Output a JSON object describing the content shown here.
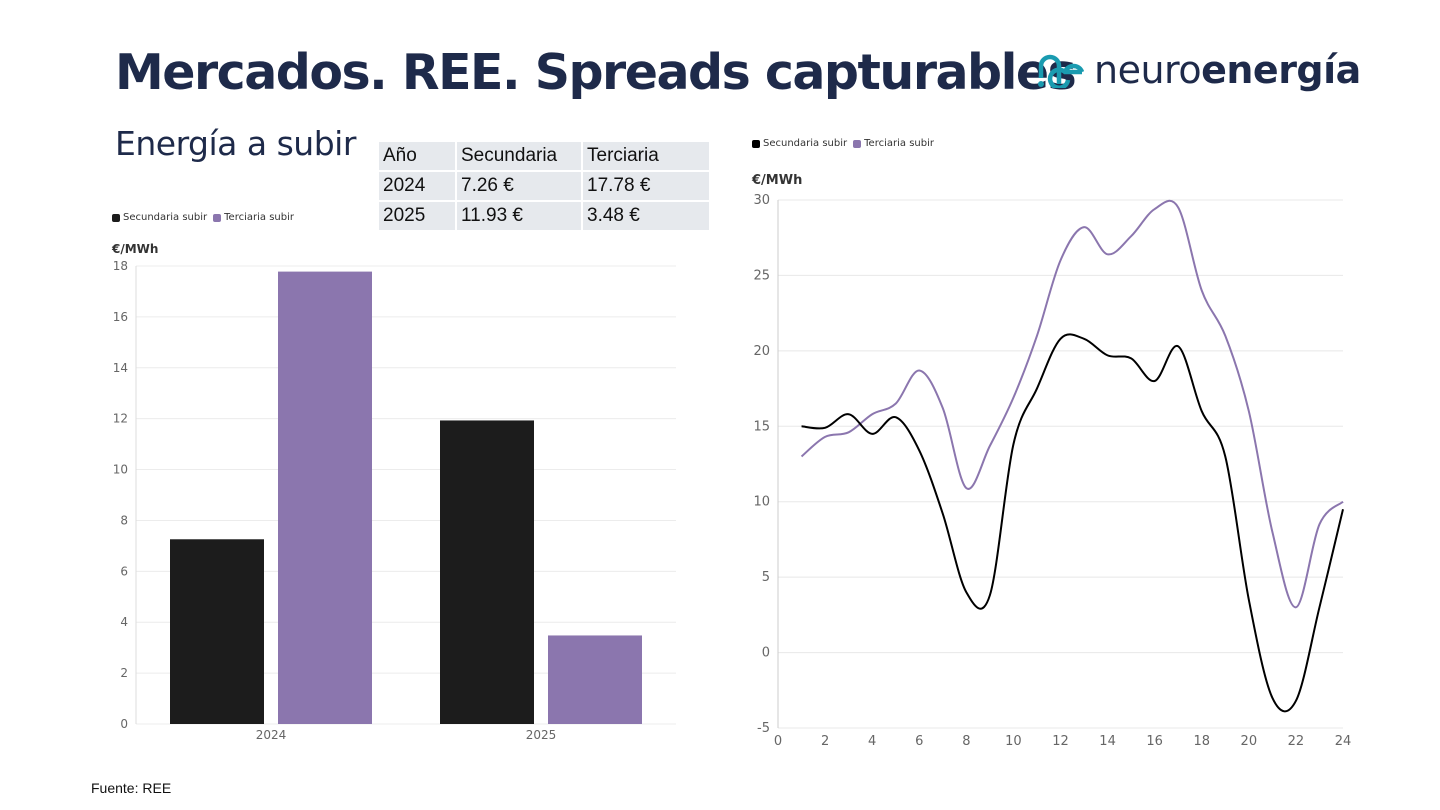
{
  "title": "Mercados. REE. Spreads capturables",
  "subtitle": "Energía a subir",
  "logo": {
    "text_light": "neuro",
    "text_bold": "energía",
    "color": "#1a9bb0"
  },
  "table": {
    "headers": [
      "Año",
      "Secundaria",
      "Terciaria"
    ],
    "rows": [
      [
        "2024",
        "7.26 €",
        "17.78 €"
      ],
      [
        "2025",
        "11.93 €",
        "3.48 €"
      ]
    ]
  },
  "footer": "Fuente: REE",
  "chart_data": [
    {
      "type": "bar",
      "categories": [
        "2024",
        "2025"
      ],
      "series": [
        {
          "name": "Secundaria subir",
          "color": "#1c1c1c",
          "values": [
            7.26,
            11.93
          ]
        },
        {
          "name": "Terciaria subir",
          "color": "#8b76ae",
          "values": [
            17.78,
            3.48
          ]
        }
      ],
      "ylabel": "€/MWh",
      "ylim": [
        0,
        18
      ],
      "yticks": [
        0,
        2,
        4,
        6,
        8,
        10,
        12,
        14,
        16,
        18
      ],
      "grid": true,
      "legend": "top-left"
    },
    {
      "type": "line",
      "x": [
        1,
        2,
        3,
        4,
        5,
        6,
        7,
        8,
        9,
        10,
        11,
        12,
        13,
        14,
        15,
        16,
        17,
        18,
        19,
        20,
        21,
        22,
        23,
        24
      ],
      "series": [
        {
          "name": "Secundaria subir",
          "color": "#000000",
          "values": [
            15.0,
            14.9,
            15.8,
            14.5,
            15.6,
            13.4,
            9.2,
            4.0,
            3.8,
            13.8,
            17.5,
            20.8,
            20.8,
            19.7,
            19.5,
            18.0,
            20.3,
            16.0,
            13.0,
            3.5,
            -3.0,
            -3.2,
            3.0,
            9.5
          ]
        },
        {
          "name": "Terciaria subir",
          "color": "#8b76ae",
          "values": [
            13.0,
            14.3,
            14.6,
            15.8,
            16.5,
            18.7,
            16.2,
            10.9,
            13.7,
            16.9,
            21.0,
            26.0,
            28.2,
            26.4,
            27.6,
            29.4,
            29.5,
            24.0,
            21.0,
            16.0,
            8.0,
            3.0,
            8.5,
            10.0
          ]
        }
      ],
      "ylabel": "€/MWh",
      "ylim": [
        -5,
        30
      ],
      "yticks": [
        -5,
        0,
        5,
        10,
        15,
        20,
        25,
        30
      ],
      "xticks": [
        0,
        2,
        4,
        6,
        8,
        10,
        12,
        14,
        16,
        18,
        20,
        22,
        24
      ],
      "grid": true,
      "legend": "top-left"
    }
  ]
}
